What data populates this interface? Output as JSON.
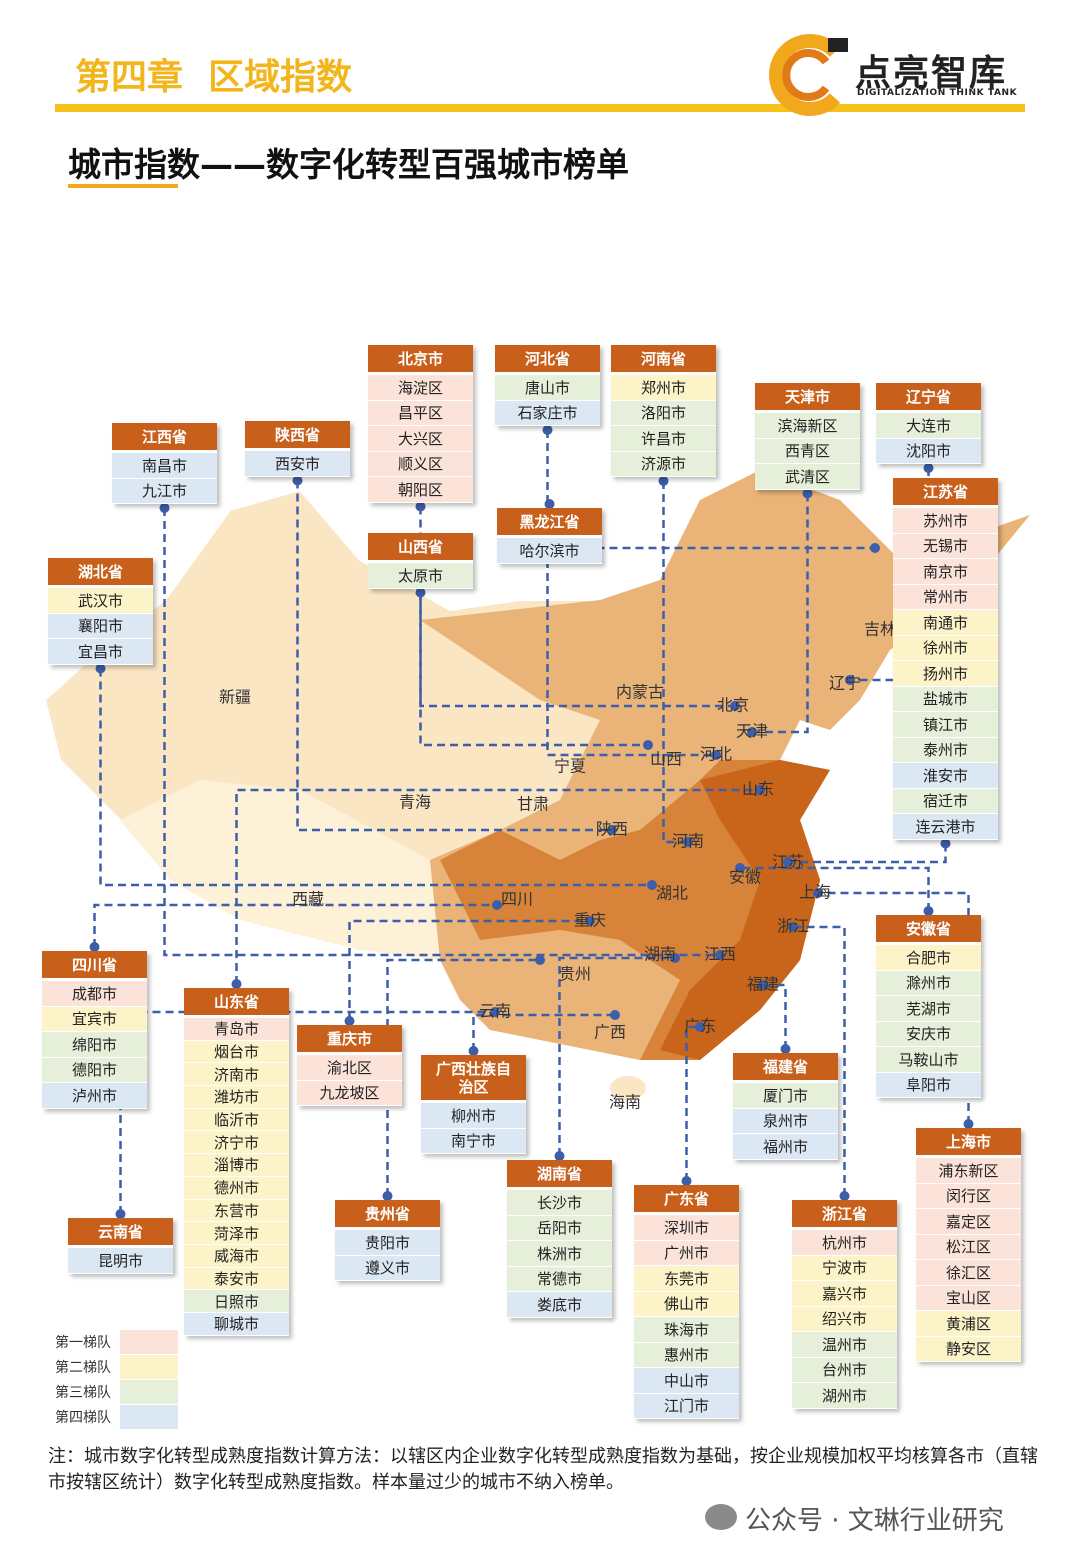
{
  "header": {
    "chapter": "第四章  区域指数",
    "logo_name": "点亮智库",
    "logo_tagline": "DIGITALIZATION THINK TANK"
  },
  "title": "城市指数——数字化转型百强城市榜单",
  "map_labels": [
    "新疆",
    "西藏",
    "青海",
    "甘肃",
    "宁夏",
    "内蒙古",
    "山西",
    "陕西",
    "河南",
    "四川",
    "重庆",
    "湖北",
    "湖南",
    "贵州",
    "云南",
    "广西",
    "广东",
    "海南",
    "江西",
    "福建",
    "浙江",
    "安徽",
    "江苏",
    "上海",
    "山东",
    "河北",
    "天津",
    "北京",
    "辽宁",
    "吉林"
  ],
  "legend": [
    {
      "label": "第一梯队",
      "color": "#fbe3da"
    },
    {
      "label": "第二梯队",
      "color": "#fdf3c8"
    },
    {
      "label": "第三梯队",
      "color": "#e5efd9"
    },
    {
      "label": "第四梯队",
      "color": "#dce7f4"
    }
  ],
  "regions": [
    {
      "name": "北京市",
      "cities": [
        {
          "name": "海淀区",
          "tier": 1
        },
        {
          "name": "昌平区",
          "tier": 1
        },
        {
          "name": "大兴区",
          "tier": 1
        },
        {
          "name": "顺义区",
          "tier": 1
        },
        {
          "name": "朝阳区",
          "tier": 1
        }
      ]
    },
    {
      "name": "河北省",
      "cities": [
        {
          "name": "唐山市",
          "tier": 3
        },
        {
          "name": "石家庄市",
          "tier": 4
        }
      ]
    },
    {
      "name": "河南省",
      "cities": [
        {
          "name": "郑州市",
          "tier": 2
        },
        {
          "name": "洛阳市",
          "tier": 3
        },
        {
          "name": "许昌市",
          "tier": 3
        },
        {
          "name": "济源市",
          "tier": 3
        }
      ]
    },
    {
      "name": "天津市",
      "cities": [
        {
          "name": "滨海新区",
          "tier": 3
        },
        {
          "name": "西青区",
          "tier": 3
        },
        {
          "name": "武清区",
          "tier": 3
        }
      ]
    },
    {
      "name": "辽宁省",
      "cities": [
        {
          "name": "大连市",
          "tier": 3
        },
        {
          "name": "沈阳市",
          "tier": 4
        }
      ]
    },
    {
      "name": "江苏省",
      "cities": [
        {
          "name": "苏州市",
          "tier": 1
        },
        {
          "name": "无锡市",
          "tier": 1
        },
        {
          "name": "南京市",
          "tier": 1
        },
        {
          "name": "常州市",
          "tier": 1
        },
        {
          "name": "南通市",
          "tier": 2
        },
        {
          "name": "徐州市",
          "tier": 2
        },
        {
          "name": "扬州市",
          "tier": 2
        },
        {
          "name": "盐城市",
          "tier": 3
        },
        {
          "name": "镇江市",
          "tier": 3
        },
        {
          "name": "泰州市",
          "tier": 3
        },
        {
          "name": "淮安市",
          "tier": 4
        },
        {
          "name": "宿迁市",
          "tier": 3
        },
        {
          "name": "连云港市",
          "tier": 4
        }
      ]
    },
    {
      "name": "江西省",
      "cities": [
        {
          "name": "南昌市",
          "tier": 4
        },
        {
          "name": "九江市",
          "tier": 4
        }
      ]
    },
    {
      "name": "陕西省",
      "cities": [
        {
          "name": "西安市",
          "tier": 4
        }
      ]
    },
    {
      "name": "黑龙江省",
      "cities": [
        {
          "name": "哈尔滨市",
          "tier": 4
        }
      ]
    },
    {
      "name": "山西省",
      "cities": [
        {
          "name": "太原市",
          "tier": 3
        }
      ]
    },
    {
      "name": "湖北省",
      "cities": [
        {
          "name": "武汉市",
          "tier": 2
        },
        {
          "name": "襄阳市",
          "tier": 4
        },
        {
          "name": "宜昌市",
          "tier": 4
        }
      ]
    },
    {
      "name": "四川省",
      "cities": [
        {
          "name": "成都市",
          "tier": 1
        },
        {
          "name": "宜宾市",
          "tier": 2
        },
        {
          "name": "绵阳市",
          "tier": 3
        },
        {
          "name": "德阳市",
          "tier": 3
        },
        {
          "name": "泸州市",
          "tier": 4
        }
      ]
    },
    {
      "name": "山东省",
      "cities": [
        {
          "name": "青岛市",
          "tier": 1
        },
        {
          "name": "烟台市",
          "tier": 2
        },
        {
          "name": "济南市",
          "tier": 2
        },
        {
          "name": "潍坊市",
          "tier": 2
        },
        {
          "name": "临沂市",
          "tier": 2
        },
        {
          "name": "济宁市",
          "tier": 2
        },
        {
          "name": "淄博市",
          "tier": 2
        },
        {
          "name": "德州市",
          "tier": 2
        },
        {
          "name": "东营市",
          "tier": 2
        },
        {
          "name": "菏泽市",
          "tier": 2
        },
        {
          "name": "威海市",
          "tier": 2
        },
        {
          "name": "泰安市",
          "tier": 2
        },
        {
          "name": "日照市",
          "tier": 3
        },
        {
          "name": "聊城市",
          "tier": 4
        }
      ]
    },
    {
      "name": "重庆市",
      "cities": [
        {
          "name": "渝北区",
          "tier": 1
        },
        {
          "name": "九龙坡区",
          "tier": 1
        }
      ]
    },
    {
      "name": "广西壮族自治区",
      "cities": [
        {
          "name": "柳州市",
          "tier": 4
        },
        {
          "name": "南宁市",
          "tier": 4
        }
      ]
    },
    {
      "name": "云南省",
      "cities": [
        {
          "name": "昆明市",
          "tier": 4
        }
      ]
    },
    {
      "name": "贵州省",
      "cities": [
        {
          "name": "贵阳市",
          "tier": 4
        },
        {
          "name": "遵义市",
          "tier": 4
        }
      ]
    },
    {
      "name": "湖南省",
      "cities": [
        {
          "name": "长沙市",
          "tier": 3
        },
        {
          "name": "岳阳市",
          "tier": 3
        },
        {
          "name": "株洲市",
          "tier": 3
        },
        {
          "name": "常德市",
          "tier": 3
        },
        {
          "name": "娄底市",
          "tier": 4
        }
      ]
    },
    {
      "name": "广东省",
      "cities": [
        {
          "name": "深圳市",
          "tier": 1
        },
        {
          "name": "广州市",
          "tier": 1
        },
        {
          "name": "东莞市",
          "tier": 2
        },
        {
          "name": "佛山市",
          "tier": 2
        },
        {
          "name": "珠海市",
          "tier": 3
        },
        {
          "name": "惠州市",
          "tier": 3
        },
        {
          "name": "中山市",
          "tier": 4
        },
        {
          "name": "江门市",
          "tier": 4
        }
      ]
    },
    {
      "name": "福建省",
      "cities": [
        {
          "name": "厦门市",
          "tier": 3
        },
        {
          "name": "泉州市",
          "tier": 4
        },
        {
          "name": "福州市",
          "tier": 4
        }
      ]
    },
    {
      "name": "浙江省",
      "cities": [
        {
          "name": "杭州市",
          "tier": 1
        },
        {
          "name": "宁波市",
          "tier": 2
        },
        {
          "name": "嘉兴市",
          "tier": 2
        },
        {
          "name": "绍兴市",
          "tier": 2
        },
        {
          "name": "温州市",
          "tier": 3
        },
        {
          "name": "台州市",
          "tier": 3
        },
        {
          "name": "湖州市",
          "tier": 3
        }
      ]
    },
    {
      "name": "安徽省",
      "cities": [
        {
          "name": "合肥市",
          "tier": 2
        },
        {
          "name": "滁州市",
          "tier": 3
        },
        {
          "name": "芜湖市",
          "tier": 3
        },
        {
          "name": "安庆市",
          "tier": 3
        },
        {
          "name": "马鞍山市",
          "tier": 3
        },
        {
          "name": "阜阳市",
          "tier": 4
        }
      ]
    },
    {
      "name": "上海市",
      "cities": [
        {
          "name": "浦东新区",
          "tier": 1
        },
        {
          "name": "闵行区",
          "tier": 1
        },
        {
          "name": "嘉定区",
          "tier": 1
        },
        {
          "name": "松江区",
          "tier": 1
        },
        {
          "name": "徐汇区",
          "tier": 1
        },
        {
          "name": "宝山区",
          "tier": 1
        },
        {
          "name": "黄浦区",
          "tier": 2
        },
        {
          "name": "静安区",
          "tier": 2
        }
      ]
    }
  ],
  "note": "注：城市数字化转型成熟度指数计算方法：以辖区内企业数字化转型成熟度指数为基础，按企业规模加权平均核算各市（直辖市按辖区统计）数字化转型成熟度指数。样本量过少的城市不纳入榜单。",
  "watermark": "公众号 · 文琳行业研究"
}
